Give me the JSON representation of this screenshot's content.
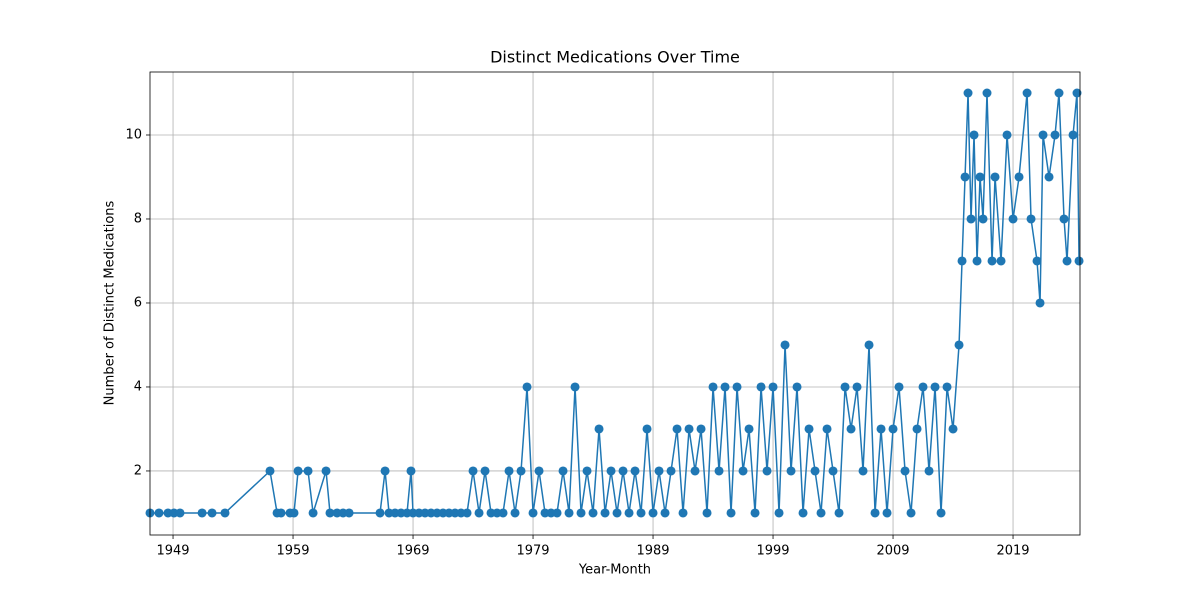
{
  "chart_data": {
    "type": "line",
    "title": "Distinct Medications Over Time",
    "xlabel": "Year-Month",
    "ylabel": "Number of Distinct Medications",
    "color": "#1f77b4",
    "grid": true,
    "xlim": [
      1947.08,
      2024.58
    ],
    "ylim": [
      0.475,
      11.5
    ],
    "xticks": [
      1949,
      1959,
      1969,
      1979,
      1989,
      1999,
      2009,
      2019
    ],
    "yticks": [
      2,
      4,
      6,
      8,
      10
    ],
    "x": [
      1947.08,
      1947.83,
      1948.58,
      1949.08,
      1949.58,
      1951.42,
      1952.25,
      1953.33,
      1957.08,
      1957.67,
      1958,
      1958.75,
      1959.08,
      1959.42,
      1960.25,
      1960.67,
      1961.75,
      1962.08,
      1962.67,
      1963.17,
      1963.67,
      1966.25,
      1966.67,
      1967,
      1967.5,
      1968,
      1968.5,
      1968.83,
      1969,
      1969.5,
      1970,
      1970.5,
      1971,
      1971.5,
      1972,
      1972.5,
      1973,
      1973.5,
      1974,
      1974.5,
      1975,
      1975.5,
      1976,
      1976.5,
      1977,
      1977.5,
      1978,
      1978.5,
      1979,
      1979.5,
      1980,
      1980.5,
      1981,
      1981.5,
      1982,
      1982.5,
      1983,
      1983.5,
      1984,
      1984.5,
      1985,
      1985.5,
      1986,
      1986.5,
      1987,
      1987.5,
      1988,
      1988.5,
      1989,
      1989.5,
      1990,
      1990.5,
      1991,
      1991.5,
      1992,
      1992.5,
      1993,
      1993.5,
      1994,
      1994.5,
      1995,
      1995.5,
      1996,
      1996.5,
      1997,
      1997.5,
      1998,
      1998.5,
      1999,
      1999.5,
      2000,
      2000.5,
      2001,
      2001.5,
      2002,
      2002.5,
      2003,
      2003.5,
      2004,
      2004.5,
      2005,
      2005.5,
      2006,
      2006.5,
      2007,
      2007.5,
      2008,
      2008.5,
      2009,
      2009.5,
      2010,
      2010.5,
      2011,
      2011.5,
      2012,
      2012.5,
      2013,
      2013.5,
      2014,
      2014.5,
      2014.75,
      2015,
      2015.25,
      2015.5,
      2015.75,
      2016,
      2016.25,
      2016.5,
      2016.83,
      2017.25,
      2017.5,
      2018,
      2018.5,
      2019,
      2019.5,
      2020.17,
      2020.5,
      2021,
      2021.25,
      2021.5,
      2022,
      2022.5,
      2022.83,
      2023.25,
      2023.5,
      2024,
      2024.33,
      2024.5
    ],
    "values": [
      1,
      1,
      1,
      1,
      1,
      1,
      1,
      1,
      2,
      1,
      1,
      1,
      1,
      2,
      2,
      1,
      2,
      1,
      1,
      1,
      1,
      1,
      2,
      1,
      1,
      1,
      1,
      2,
      1,
      1,
      1,
      1,
      1,
      1,
      1,
      1,
      1,
      1,
      2,
      1,
      2,
      1,
      1,
      1,
      2,
      1,
      2,
      4,
      1,
      2,
      1,
      1,
      1,
      2,
      1,
      4,
      1,
      2,
      1,
      3,
      1,
      2,
      1,
      2,
      1,
      2,
      1,
      3,
      1,
      2,
      1,
      2,
      3,
      1,
      3,
      2,
      3,
      1,
      4,
      2,
      4,
      1,
      4,
      2,
      3,
      1,
      4,
      2,
      4,
      1,
      5,
      2,
      4,
      1,
      3,
      2,
      1,
      3,
      2,
      1,
      4,
      3,
      4,
      2,
      5,
      1,
      3,
      1,
      3,
      4,
      2,
      1,
      3,
      4,
      2,
      4,
      1,
      4,
      3,
      5,
      7,
      9,
      11,
      8,
      10,
      7,
      9,
      8,
      11,
      7,
      9,
      7,
      10,
      8,
      9,
      11,
      8,
      7,
      6,
      10,
      9,
      10,
      11,
      8,
      7,
      10,
      11,
      7
    ]
  }
}
